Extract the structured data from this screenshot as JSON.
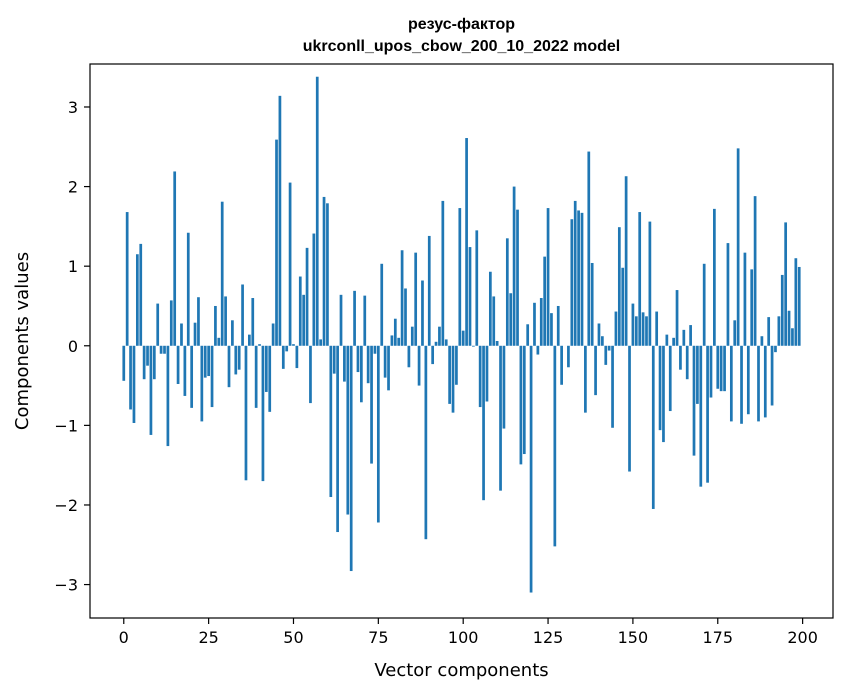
{
  "chart_data": {
    "type": "bar",
    "title_line1": "резус-фактор",
    "title_line2": "ukrconll_upos_cbow_200_10_2022 model",
    "xlabel": "Vector components",
    "ylabel": "Components values",
    "xlim": [
      -9.95,
      208.95
    ],
    "ylim": [
      -3.42,
      3.54
    ],
    "xticks": [
      0,
      25,
      50,
      75,
      100,
      125,
      150,
      175,
      200
    ],
    "yticks": [
      -3,
      -2,
      -1,
      0,
      1,
      2,
      3
    ],
    "xtick_labels": [
      "0",
      "25",
      "50",
      "75",
      "100",
      "125",
      "150",
      "175",
      "200"
    ],
    "ytick_labels": [
      "−3",
      "−2",
      "−1",
      "0",
      "1",
      "2",
      "3"
    ],
    "grid": false,
    "legend": "none",
    "bar_color": "#1f77b4",
    "x": [
      0,
      1,
      2,
      3,
      4,
      5,
      6,
      7,
      8,
      9,
      10,
      11,
      12,
      13,
      14,
      15,
      16,
      17,
      18,
      19,
      20,
      21,
      22,
      23,
      24,
      25,
      26,
      27,
      28,
      29,
      30,
      31,
      32,
      33,
      34,
      35,
      36,
      37,
      38,
      39,
      40,
      41,
      42,
      43,
      44,
      45,
      46,
      47,
      48,
      49,
      50,
      51,
      52,
      53,
      54,
      55,
      56,
      57,
      58,
      59,
      60,
      61,
      62,
      63,
      64,
      65,
      66,
      67,
      68,
      69,
      70,
      71,
      72,
      73,
      74,
      75,
      76,
      77,
      78,
      79,
      80,
      81,
      82,
      83,
      84,
      85,
      86,
      87,
      88,
      89,
      90,
      91,
      92,
      93,
      94,
      95,
      96,
      97,
      98,
      99,
      100,
      101,
      102,
      103,
      104,
      105,
      106,
      107,
      108,
      109,
      110,
      111,
      112,
      113,
      114,
      115,
      116,
      117,
      118,
      119,
      120,
      121,
      122,
      123,
      124,
      125,
      126,
      127,
      128,
      129,
      130,
      131,
      132,
      133,
      134,
      135,
      136,
      137,
      138,
      139,
      140,
      141,
      142,
      143,
      144,
      145,
      146,
      147,
      148,
      149,
      150,
      151,
      152,
      153,
      154,
      155,
      156,
      157,
      158,
      159,
      160,
      161,
      162,
      163,
      164,
      165,
      166,
      167,
      168,
      169,
      170,
      171,
      172,
      173,
      174,
      175,
      176,
      177,
      178,
      179,
      180,
      181,
      182,
      183,
      184,
      185,
      186,
      187,
      188,
      189,
      190,
      191,
      192,
      193,
      194,
      195,
      196,
      197,
      198,
      199
    ],
    "values": [
      -0.44,
      1.68,
      -0.8,
      -0.97,
      1.15,
      1.28,
      -0.42,
      -0.25,
      -1.12,
      -0.42,
      0.53,
      -0.1,
      -0.1,
      -1.26,
      0.57,
      2.19,
      -0.48,
      0.28,
      -0.63,
      1.42,
      -0.78,
      0.29,
      0.61,
      -0.95,
      -0.4,
      -0.38,
      -0.77,
      0.5,
      0.1,
      1.81,
      0.62,
      -0.52,
      0.32,
      -0.36,
      -0.3,
      0.77,
      -1.69,
      0.14,
      0.6,
      -0.78,
      0.02,
      -1.7,
      -0.58,
      -0.83,
      0.28,
      2.59,
      3.14,
      -0.29,
      -0.07,
      2.05,
      0.02,
      -0.28,
      0.87,
      0.64,
      1.23,
      -0.72,
      1.41,
      3.38,
      0.08,
      1.87,
      1.79,
      -1.9,
      -0.35,
      -2.34,
      0.64,
      -0.45,
      -2.12,
      -2.83,
      0.69,
      -0.33,
      -0.71,
      0.63,
      -0.47,
      -1.48,
      -0.1,
      -2.22,
      1.03,
      -0.4,
      -0.56,
      0.13,
      0.34,
      0.1,
      1.2,
      0.72,
      -0.27,
      0.24,
      1.17,
      -0.5,
      0.82,
      -2.43,
      1.38,
      -0.23,
      0.05,
      0.24,
      1.82,
      0.08,
      -0.73,
      -0.84,
      -0.49,
      1.73,
      0.19,
      2.61,
      1.24,
      -0.01,
      1.45,
      -0.77,
      -1.94,
      -0.7,
      0.93,
      0.62,
      0.06,
      -1.82,
      -1.04,
      1.35,
      0.66,
      2.0,
      1.71,
      -1.49,
      -1.36,
      0.27,
      -3.1,
      0.54,
      -0.11,
      0.6,
      1.12,
      1.73,
      0.41,
      -2.52,
      0.5,
      -0.49,
      0.0,
      -0.27,
      1.59,
      1.82,
      1.7,
      1.67,
      -0.84,
      2.44,
      1.04,
      -0.62,
      0.28,
      0.12,
      -0.24,
      -0.06,
      -1.03,
      0.43,
      1.49,
      0.98,
      2.13,
      -1.58,
      0.53,
      0.37,
      1.68,
      0.42,
      0.37,
      1.56,
      -2.05,
      0.43,
      -1.06,
      -1.21,
      0.14,
      -0.82,
      0.1,
      0.7,
      -0.3,
      0.2,
      -0.42,
      0.26,
      -1.38,
      -0.73,
      -1.77,
      1.03,
      -1.72,
      -0.65,
      1.72,
      -0.54,
      -0.57,
      -0.57,
      1.29,
      -0.95,
      0.32,
      2.48,
      -0.98,
      1.17,
      -0.86,
      0.96,
      1.88,
      -0.95,
      0.12,
      -0.9,
      0.36,
      -0.75,
      -0.08,
      0.37,
      0.89,
      1.55,
      0.44,
      0.22,
      1.1,
      0.99
    ]
  }
}
